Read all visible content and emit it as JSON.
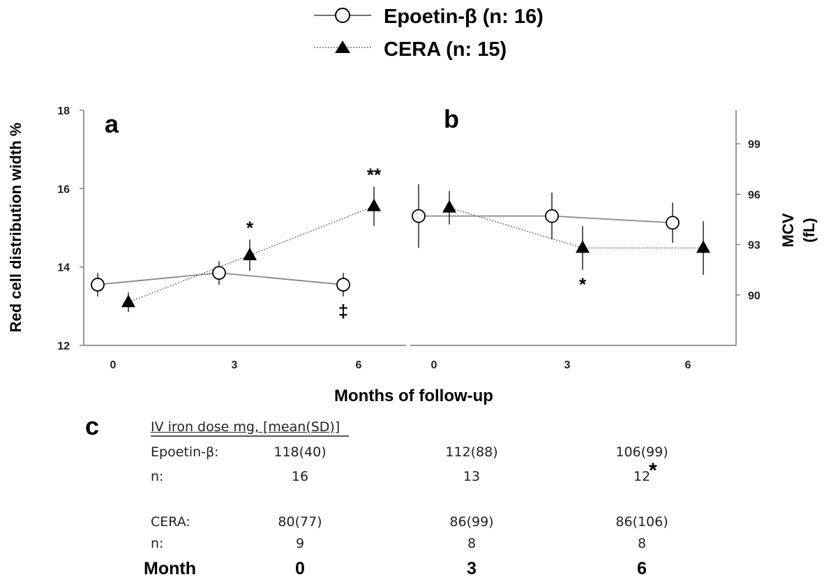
{
  "legend": [
    {
      "label": "Epoetin-β (n: 16)",
      "marker": "open-circle",
      "line": "solid"
    },
    {
      "label": "CERA (n: 15)",
      "marker": "filled-triangle",
      "line": "dotted"
    }
  ],
  "xlabel": "Months of follow-up",
  "chart_data": [
    {
      "panel": "a",
      "type": "line",
      "ylabel": "Red cell distribution width %",
      "yaxis_side": "left",
      "x": [
        0,
        3,
        6
      ],
      "xticks": [
        "0",
        "3",
        "6"
      ],
      "ylim": [
        12,
        18
      ],
      "yticks": [
        "12",
        "14",
        "16",
        "18"
      ],
      "series": [
        {
          "name": "Epoetin-β (n: 16)",
          "values": [
            13.55,
            13.85,
            13.55
          ],
          "error": [
            0.3,
            0.3,
            0.3
          ]
        },
        {
          "name": "CERA (n: 15)",
          "values": [
            13.1,
            14.3,
            15.55
          ],
          "error": [
            0.25,
            0.4,
            0.5
          ]
        }
      ],
      "annotations": [
        {
          "series": "Epoetin-β (n: 16)",
          "x": 6,
          "text": "‡",
          "placement": "below"
        },
        {
          "series": "CERA (n: 15)",
          "x": 3,
          "text": "*",
          "placement": "above"
        },
        {
          "series": "CERA (n: 15)",
          "x": 6,
          "text": "**",
          "placement": "above"
        }
      ]
    },
    {
      "panel": "b",
      "type": "line",
      "ylabel": "MCV (fL)",
      "yaxis_side": "right",
      "x": [
        0,
        3,
        6
      ],
      "xticks": [
        "0",
        "3",
        "6"
      ],
      "ylim": [
        87,
        101
      ],
      "yticks": [
        "90",
        "93",
        "96",
        "99"
      ],
      "series": [
        {
          "name": "Epoetin-β (n: 16)",
          "values": [
            94.7,
            94.7,
            94.3
          ],
          "error": [
            1.9,
            1.4,
            1.2
          ]
        },
        {
          "name": "CERA (n: 15)",
          "values": [
            95.2,
            92.8,
            92.8
          ],
          "error": [
            1.0,
            1.3,
            1.6
          ]
        }
      ],
      "annotations": [
        {
          "series": "CERA (n: 15)",
          "x": 3,
          "text": "*",
          "placement": "below"
        }
      ]
    },
    {
      "panel": "c",
      "type": "table",
      "title": "IV iron dose mg, [mean(SD)]",
      "columns": [
        "0",
        "3",
        "6"
      ],
      "column_header": "Month",
      "rows": [
        {
          "label": "Epoetin-β:",
          "values": [
            "118(40)",
            "112(88)",
            "106(99)"
          ]
        },
        {
          "label": "n:",
          "values": [
            "16",
            "13",
            "12"
          ]
        },
        {
          "label": "CERA:",
          "values": [
            "80(77)",
            "86(99)",
            "86(106)"
          ]
        },
        {
          "label": "n:",
          "values": [
            "9",
            "8",
            "8"
          ]
        }
      ],
      "annotations": [
        {
          "row": 1,
          "column": 2,
          "text": "*"
        }
      ]
    }
  ]
}
